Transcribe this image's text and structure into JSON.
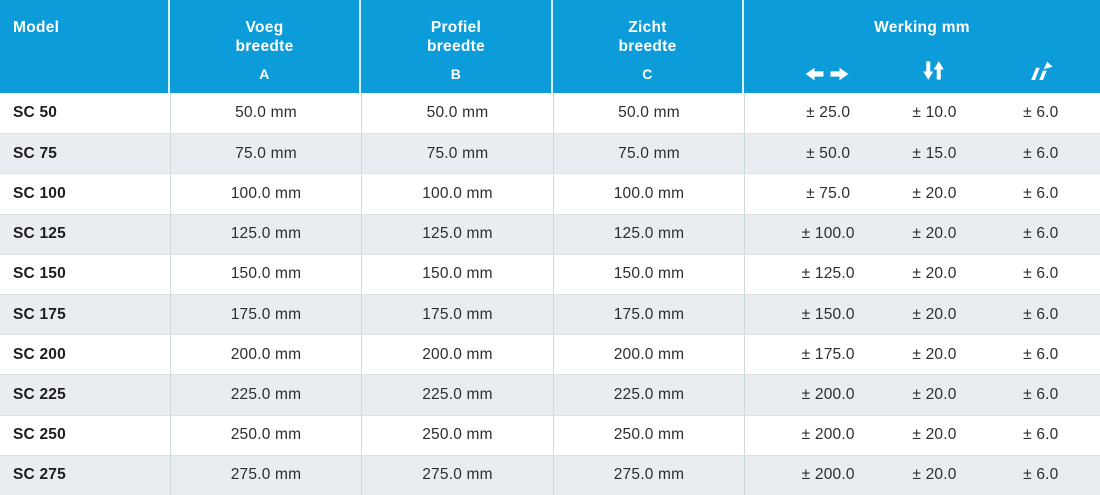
{
  "theme": {
    "header_bg": "#0c9cda",
    "header_text": "#ffffff",
    "row_bg": "#ffffff",
    "row_alt_bg": "#e9edf1",
    "row_border": "#dbe2e7",
    "cell_border": "#cfd9e0",
    "model_text": "#1d1d1f",
    "value_text": "#2b2d2e"
  },
  "header": {
    "model": "Model",
    "voeg": {
      "label": "Voeg\nbreedte",
      "sub": "A"
    },
    "profiel": {
      "label": "Profiel\nbreedte",
      "sub": "B"
    },
    "zicht": {
      "label": "Zicht\nbreedte",
      "sub": "C"
    },
    "werking": {
      "label": "Werking mm",
      "icons": [
        "left-right-arrows",
        "up-down-arrows",
        "diagonal-shear-arrows"
      ]
    }
  },
  "rows": [
    {
      "model": "SC 50",
      "voeg_breedte": "50.0 mm",
      "profiel_breedte": "50.0 mm",
      "zicht_breedte": "50.0 mm",
      "werking_h": "± 25.0",
      "werking_v": "± 10.0",
      "werking_d": "± 6.0"
    },
    {
      "model": "SC 75",
      "voeg_breedte": "75.0 mm",
      "profiel_breedte": "75.0 mm",
      "zicht_breedte": "75.0 mm",
      "werking_h": "± 50.0",
      "werking_v": "± 15.0",
      "werking_d": "± 6.0"
    },
    {
      "model": "SC 100",
      "voeg_breedte": "100.0 mm",
      "profiel_breedte": "100.0 mm",
      "zicht_breedte": "100.0 mm",
      "werking_h": "± 75.0",
      "werking_v": "± 20.0",
      "werking_d": "± 6.0"
    },
    {
      "model": "SC 125",
      "voeg_breedte": "125.0 mm",
      "profiel_breedte": "125.0 mm",
      "zicht_breedte": "125.0 mm",
      "werking_h": "± 100.0",
      "werking_v": "± 20.0",
      "werking_d": "± 6.0"
    },
    {
      "model": "SC 150",
      "voeg_breedte": "150.0 mm",
      "profiel_breedte": "150.0 mm",
      "zicht_breedte": "150.0 mm",
      "werking_h": "± 125.0",
      "werking_v": "± 20.0",
      "werking_d": "± 6.0"
    },
    {
      "model": "SC 175",
      "voeg_breedte": "175.0 mm",
      "profiel_breedte": "175.0 mm",
      "zicht_breedte": "175.0 mm",
      "werking_h": "± 150.0",
      "werking_v": "± 20.0",
      "werking_d": "± 6.0"
    },
    {
      "model": "SC 200",
      "voeg_breedte": "200.0 mm",
      "profiel_breedte": "200.0 mm",
      "zicht_breedte": "200.0 mm",
      "werking_h": "± 175.0",
      "werking_v": "± 20.0",
      "werking_d": "± 6.0"
    },
    {
      "model": "SC 225",
      "voeg_breedte": "225.0 mm",
      "profiel_breedte": "225.0 mm",
      "zicht_breedte": "225.0 mm",
      "werking_h": "± 200.0",
      "werking_v": "± 20.0",
      "werking_d": "± 6.0"
    },
    {
      "model": "SC 250",
      "voeg_breedte": "250.0 mm",
      "profiel_breedte": "250.0 mm",
      "zicht_breedte": "250.0 mm",
      "werking_h": "± 200.0",
      "werking_v": "± 20.0",
      "werking_d": "± 6.0"
    },
    {
      "model": "SC 275",
      "voeg_breedte": "275.0 mm",
      "profiel_breedte": "275.0 mm",
      "zicht_breedte": "275.0 mm",
      "werking_h": "± 200.0",
      "werking_v": "± 20.0",
      "werking_d": "± 6.0"
    }
  ]
}
